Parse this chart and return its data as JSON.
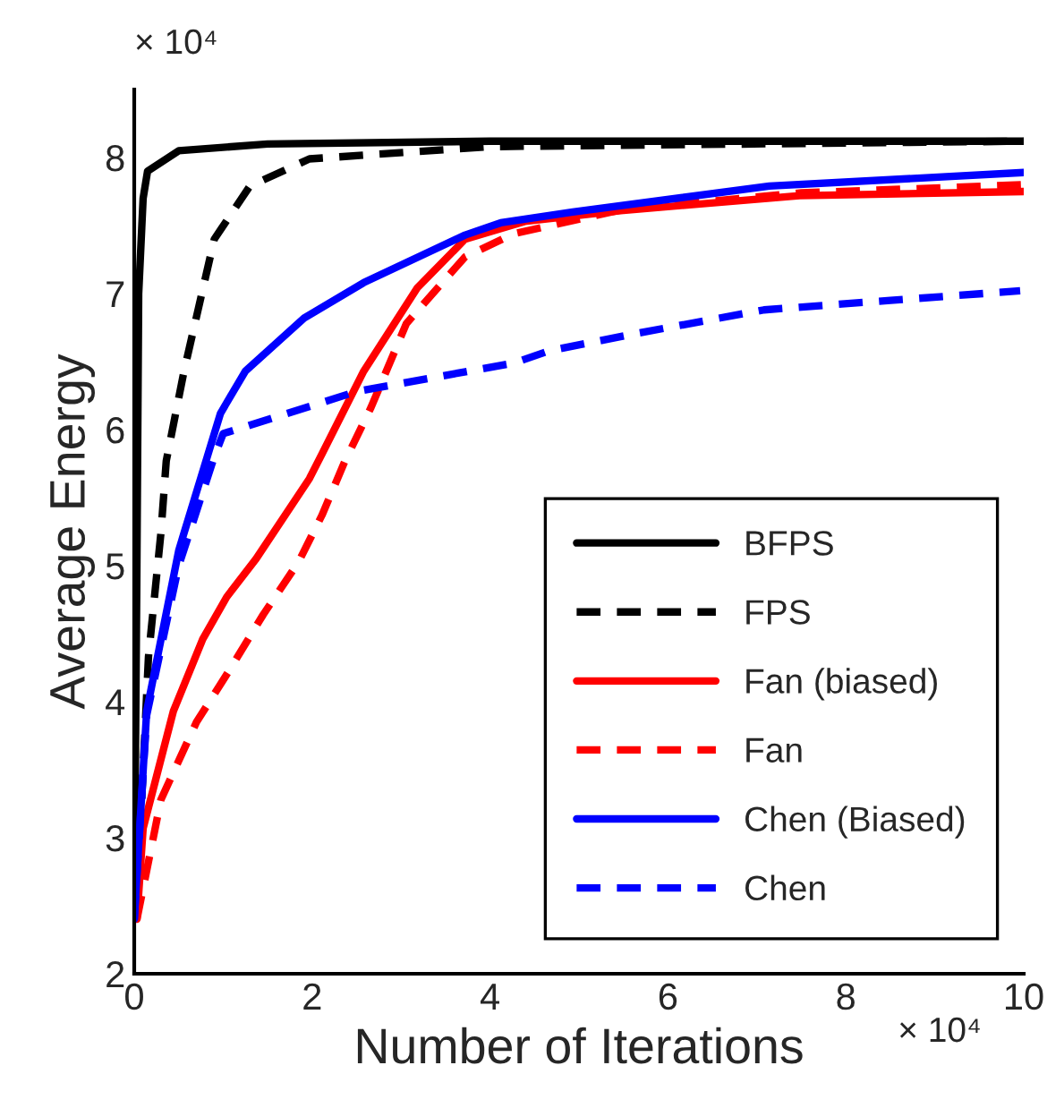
{
  "chart_data": {
    "type": "line",
    "xlabel": "Number of Iterations",
    "ylabel": "Average Energy",
    "xlim": [
      0,
      10
    ],
    "ylim": [
      2,
      8.5
    ],
    "xticks": [
      0,
      2,
      4,
      6,
      8,
      10
    ],
    "yticks": [
      2,
      3,
      4,
      5,
      6,
      7,
      8
    ],
    "grid": false,
    "legend": "bottom right",
    "annotations": [
      "× 10⁴",
      "× 10⁴"
    ],
    "series": [
      {
        "name": "BFPS",
        "color": "#000000",
        "line_style": "solid",
        "x": [
          0,
          0.03,
          0.05,
          0.1,
          0.15,
          0.5,
          1.5,
          4,
          10
        ],
        "values": [
          2.4,
          5.0,
          7.0,
          7.7,
          7.9,
          8.05,
          8.1,
          8.12,
          8.12
        ]
      },
      {
        "name": "FPS",
        "color": "#000000",
        "line_style": "dashed",
        "x": [
          0.02,
          0.16,
          0.3,
          0.36,
          0.56,
          0.9,
          1.3,
          1.97,
          4,
          10
        ],
        "values": [
          2.4,
          4.33,
          5.24,
          5.77,
          6.43,
          7.4,
          7.79,
          7.99,
          8.08,
          8.12
        ]
      },
      {
        "name": "Fan (biased)",
        "color": "#ff0000",
        "line_style": "solid",
        "x": [
          0.03,
          0.1,
          0.44,
          0.77,
          1.04,
          1.37,
          1.97,
          2.11,
          2.58,
          3.18,
          3.72,
          4.39,
          5.47,
          7.48,
          10
        ],
        "values": [
          2.4,
          3.07,
          3.93,
          4.46,
          4.77,
          5.05,
          5.64,
          5.82,
          6.43,
          7.04,
          7.4,
          7.53,
          7.61,
          7.72,
          7.75
        ]
      },
      {
        "name": "Fan",
        "color": "#ff0000",
        "line_style": "dashed",
        "x": [
          0.03,
          0.3,
          0.7,
          1.04,
          1.45,
          1.85,
          2.11,
          2.37,
          2.66,
          3.06,
          3.72,
          4.27,
          5.5,
          7.5,
          10
        ],
        "values": [
          2.4,
          3.28,
          3.85,
          4.2,
          4.64,
          5.03,
          5.37,
          5.77,
          6.16,
          6.78,
          7.27,
          7.44,
          7.62,
          7.74,
          7.8
        ]
      },
      {
        "name": "Chen (Biased)",
        "color": "#0000ff",
        "line_style": "solid",
        "x": [
          0,
          0.14,
          0.5,
          0.56,
          0.97,
          1.25,
          1.91,
          2.58,
          3.72,
          4.12,
          4.93,
          7.14,
          10
        ],
        "values": [
          2.4,
          3.93,
          5.11,
          5.24,
          6.12,
          6.43,
          6.82,
          7.08,
          7.43,
          7.52,
          7.6,
          7.79,
          7.89
        ]
      },
      {
        "name": "Chen",
        "color": "#0000ff",
        "line_style": "dashed",
        "x": [
          0,
          0.14,
          0.5,
          0.9,
          1.0,
          2.5,
          4.27,
          4.67,
          5.67,
          7.08,
          8.5,
          9.96
        ],
        "values": [
          2.4,
          3.9,
          5.0,
          5.8,
          5.97,
          6.28,
          6.49,
          6.58,
          6.71,
          6.88,
          6.95,
          7.02
        ]
      }
    ]
  }
}
